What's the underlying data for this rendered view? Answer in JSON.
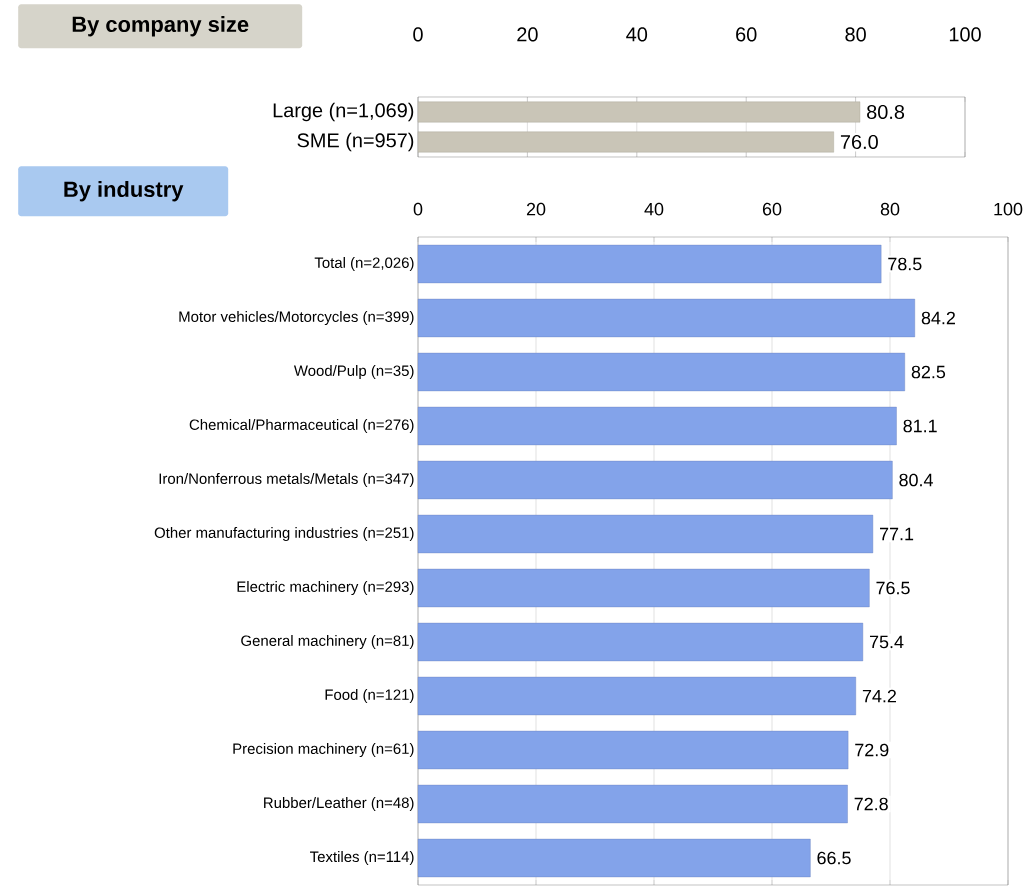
{
  "chart_data": [
    {
      "type": "bar",
      "orientation": "horizontal",
      "title": "By company size",
      "categories": [
        "Large (n=1,069)",
        "SME (n=957)"
      ],
      "values": [
        80.8,
        76.0
      ],
      "value_labels": [
        "80.8",
        "76.0"
      ],
      "color": "#c9c5b7",
      "xlim": [
        0,
        100
      ],
      "xticks": [
        0,
        20,
        40,
        60,
        80,
        100
      ],
      "grid": "x"
    },
    {
      "type": "bar",
      "orientation": "horizontal",
      "title": "By industry",
      "categories": [
        "Total (n=2,026)",
        "Motor vehicles/Motorcycles (n=399)",
        "Wood/Pulp (n=35)",
        "Chemical/Pharmaceutical (n=276)",
        "Iron/Nonferrous metals/Metals (n=347)",
        "Other manufacturing industries (n=251)",
        "Electric machinery (n=293)",
        "General machinery (n=81)",
        "Food (n=121)",
        "Precision machinery (n=61)",
        "Rubber/Leather (n=48)",
        "Textiles (n=114)"
      ],
      "values": [
        78.5,
        84.2,
        82.5,
        81.1,
        80.4,
        77.1,
        76.5,
        75.4,
        74.2,
        72.9,
        72.8,
        66.5
      ],
      "value_labels": [
        "78.5",
        "84.2",
        "82.5",
        "81.1",
        "80.4",
        "77.1",
        "76.5",
        "75.4",
        "74.2",
        "72.9",
        "72.8",
        "66.5"
      ],
      "color": "#83a3ea",
      "xlim": [
        0,
        100
      ],
      "xticks": [
        0,
        20,
        40,
        60,
        80,
        100
      ],
      "grid": "x"
    }
  ]
}
